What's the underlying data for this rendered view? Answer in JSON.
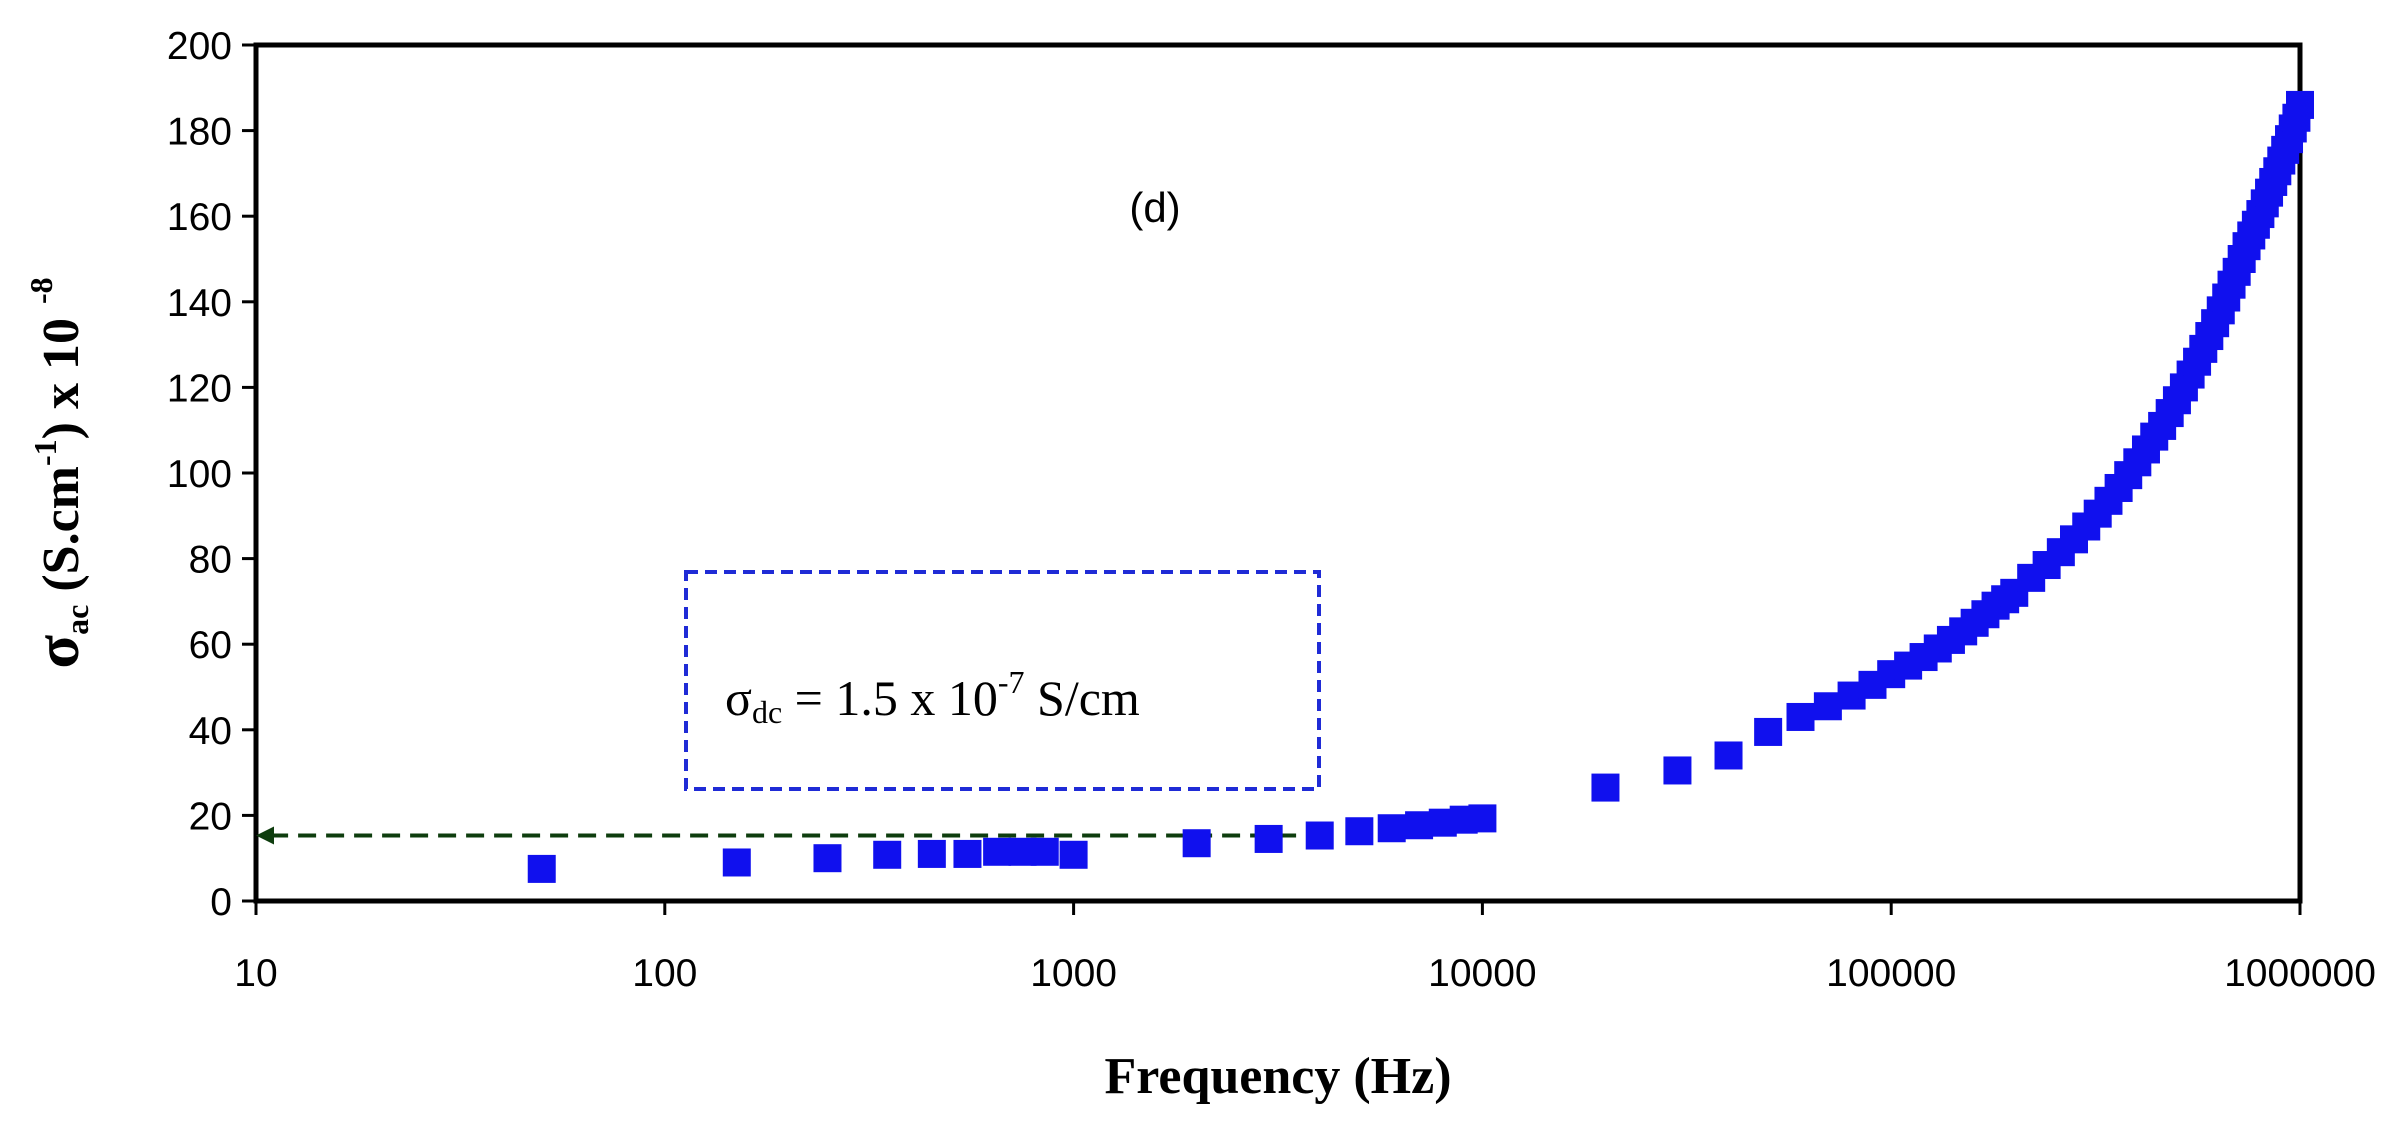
{
  "chart_data": {
    "type": "scatter",
    "x_scale": "log",
    "xlabel": "Frequency (Hz)",
    "ylabel": {
      "symbol": "σ",
      "symbol_sub": "ac",
      "units": " (S.cm",
      "units_sup": "-1",
      "units_close": ") x 10",
      "exp": "-8"
    },
    "xlim": [
      10,
      1000000
    ],
    "ylim": [
      0,
      200
    ],
    "x_ticks": [
      10,
      100,
      1000,
      10000,
      100000,
      1000000
    ],
    "x_tick_labels": [
      "10",
      "100",
      "1000",
      "10000",
      "100000",
      "1000000"
    ],
    "y_ticks": [
      0,
      20,
      40,
      60,
      80,
      100,
      120,
      140,
      160,
      180,
      200
    ],
    "y_tick_labels": [
      "0",
      "20",
      "40",
      "60",
      "80",
      "100",
      "120",
      "140",
      "160",
      "180",
      "200"
    ],
    "panel_label": "(d)",
    "marker": "square",
    "marker_color": "#1010ee",
    "annotation": {
      "symbol": "σ",
      "sub": "dc",
      "prefix": " = 1.5 x 10",
      "sup": "-7",
      "suffix": " S/cm",
      "box_color": "#1f2bd6"
    },
    "dc_line": {
      "y": 15.3,
      "x_start": 4100,
      "x_end": 10,
      "color": "#0e3d0e"
    },
    "series": [
      {
        "name": "sigma_ac",
        "points": [
          [
            50,
            7.5
          ],
          [
            150,
            9
          ],
          [
            250,
            10
          ],
          [
            350,
            10.8
          ],
          [
            450,
            11
          ],
          [
            550,
            11
          ],
          [
            650,
            11.5
          ],
          [
            750,
            11.5
          ],
          [
            850,
            11.5
          ],
          [
            1000,
            10.8
          ],
          [
            2000,
            13.5
          ],
          [
            3000,
            14.5
          ],
          [
            4000,
            15.3
          ],
          [
            5000,
            16.3
          ],
          [
            6000,
            17
          ],
          [
            7000,
            17.7
          ],
          [
            8000,
            18.3
          ],
          [
            9000,
            19
          ],
          [
            10000,
            19.3
          ],
          [
            20000,
            26.5
          ],
          [
            30000,
            30.5
          ],
          [
            40000,
            34
          ],
          [
            50000,
            39.5
          ],
          [
            60000,
            43
          ],
          [
            70000,
            45.5
          ],
          [
            80000,
            48
          ],
          [
            90000,
            50.5
          ],
          [
            100000,
            53
          ],
          [
            110000,
            55
          ],
          [
            120000,
            57
          ],
          [
            130000,
            59
          ],
          [
            140000,
            61
          ],
          [
            150000,
            63
          ],
          [
            160000,
            65
          ],
          [
            170000,
            67
          ],
          [
            180000,
            69
          ],
          [
            190000,
            70.5
          ],
          [
            200000,
            72
          ],
          [
            220000,
            75.5
          ],
          [
            240000,
            78.5
          ],
          [
            260000,
            81.5
          ],
          [
            280000,
            84.5
          ],
          [
            300000,
            87.5
          ],
          [
            320000,
            90.5
          ],
          [
            340000,
            93.5
          ],
          [
            360000,
            96.5
          ],
          [
            380000,
            99.5
          ],
          [
            400000,
            102.5
          ],
          [
            420000,
            105.5
          ],
          [
            440000,
            108.5
          ],
          [
            460000,
            111
          ],
          [
            480000,
            114
          ],
          [
            500000,
            117
          ],
          [
            520000,
            120
          ],
          [
            540000,
            123
          ],
          [
            560000,
            126
          ],
          [
            580000,
            129
          ],
          [
            600000,
            132
          ],
          [
            620000,
            135
          ],
          [
            640000,
            138
          ],
          [
            660000,
            141
          ],
          [
            680000,
            144
          ],
          [
            700000,
            147
          ],
          [
            720000,
            150
          ],
          [
            740000,
            153
          ],
          [
            760000,
            155.5
          ],
          [
            780000,
            158
          ],
          [
            800000,
            160.5
          ],
          [
            820000,
            163
          ],
          [
            840000,
            165.5
          ],
          [
            860000,
            168
          ],
          [
            880000,
            170.5
          ],
          [
            900000,
            173
          ],
          [
            920000,
            175.5
          ],
          [
            940000,
            178
          ],
          [
            960000,
            180.5
          ],
          [
            980000,
            183
          ],
          [
            1000000,
            186
          ]
        ]
      }
    ]
  }
}
